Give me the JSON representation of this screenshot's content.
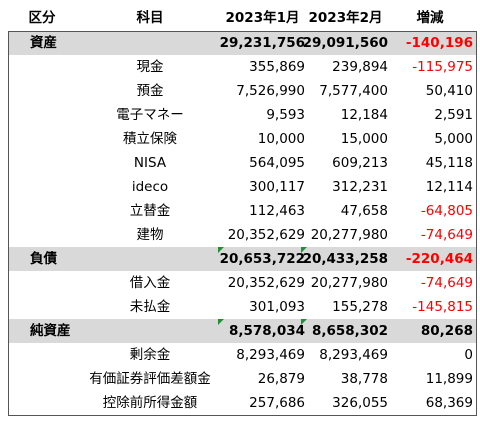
{
  "table": {
    "header": [
      "区分",
      "科目",
      "2023年1月",
      "2023年2月",
      "増減"
    ],
    "rows": [
      {
        "group": "資産",
        "values": [
          "29,231,756",
          "29,091,560",
          "-140,196"
        ]
      },
      {
        "item": "現金",
        "values": [
          "355,869",
          "239,894",
          "-115,975"
        ]
      },
      {
        "item": "預金",
        "values": [
          "7,526,990",
          "7,577,400",
          "50,410"
        ]
      },
      {
        "item": "電子マネー",
        "values": [
          "9,593",
          "12,184",
          "2,591"
        ]
      },
      {
        "item": "積立保険",
        "values": [
          "10,000",
          "15,000",
          "5,000"
        ]
      },
      {
        "item": "NISA",
        "values": [
          "564,095",
          "609,213",
          "45,118"
        ]
      },
      {
        "item": "ideco",
        "values": [
          "300,117",
          "312,231",
          "12,114"
        ]
      },
      {
        "item": "立替金",
        "values": [
          "112,463",
          "47,658",
          "-64,805"
        ]
      },
      {
        "item": "建物",
        "values": [
          "20,352,629",
          "20,277,980",
          "-74,649"
        ]
      },
      {
        "group": "負債",
        "values": [
          "20,653,722",
          "20,433,258",
          "-220,464"
        ]
      },
      {
        "item": "借入金",
        "values": [
          "20,352,629",
          "20,277,980",
          "-74,649"
        ]
      },
      {
        "item": "未払金",
        "values": [
          "301,093",
          "155,278",
          "-145,815"
        ]
      },
      {
        "group": "純資産",
        "values": [
          "8,578,034",
          "8,658,302",
          "80,268"
        ]
      },
      {
        "item": "剰余金",
        "values": [
          "8,293,469",
          "8,293,469",
          "0"
        ]
      },
      {
        "item": "有価証券評価差額金",
        "values": [
          "26,879",
          "38,778",
          "11,899"
        ]
      },
      {
        "item": "控除前所得金額",
        "values": [
          "257,686",
          "326,055",
          "68,369"
        ]
      }
    ]
  }
}
